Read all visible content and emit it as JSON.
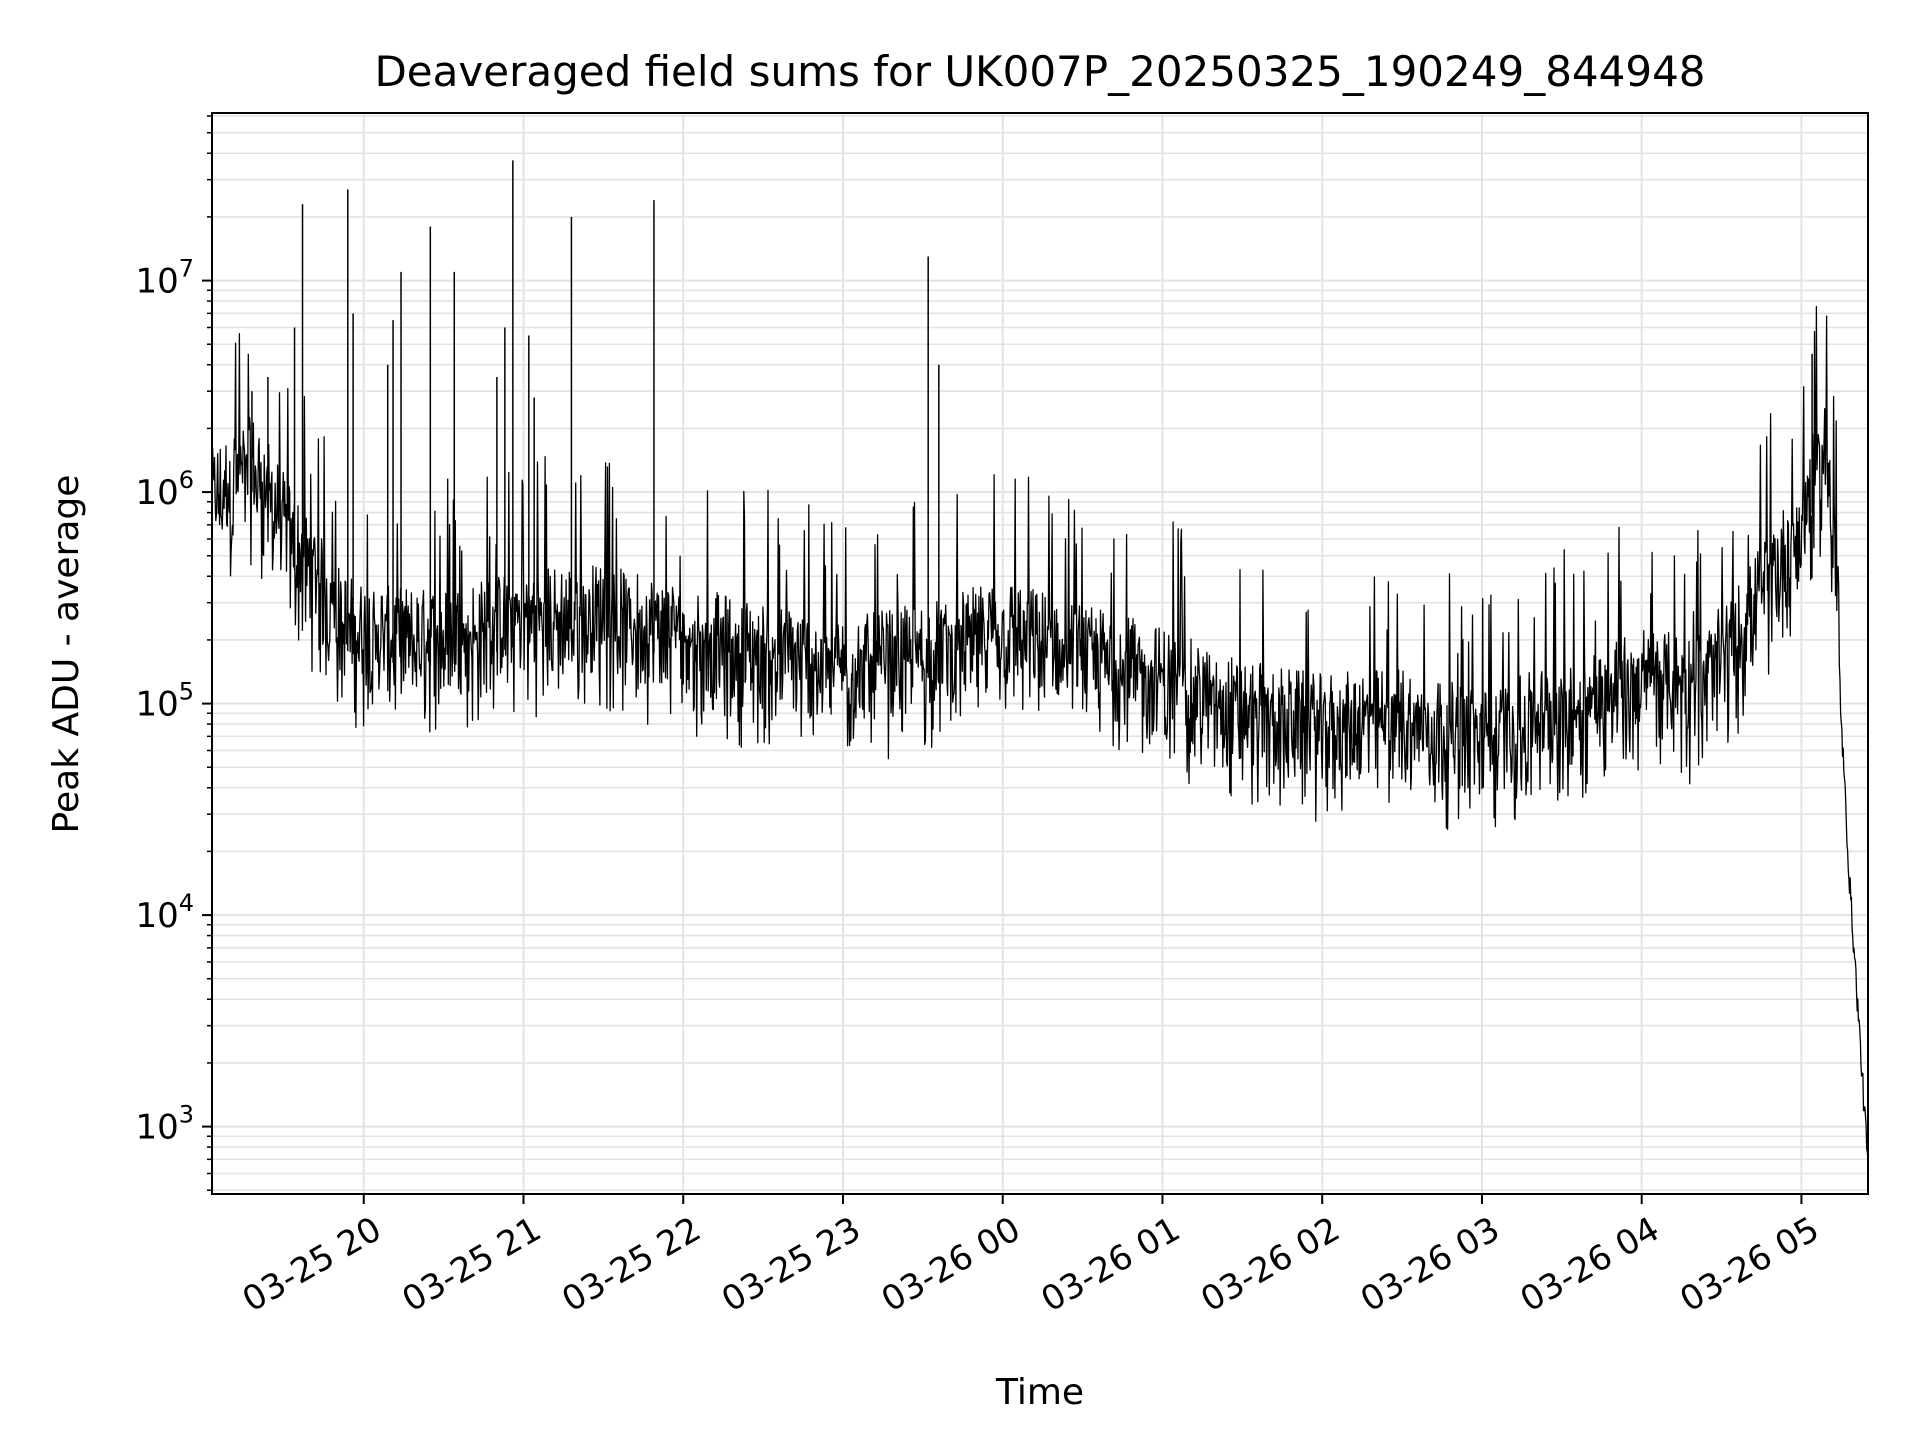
{
  "chart_data": {
    "type": "line",
    "title": "Deaveraged field sums for UK007P_20250325_190249_844948",
    "xlabel": "Time",
    "ylabel": "Peak ADU - average",
    "yscale": "log",
    "ylim": [
      480,
      62000000
    ],
    "xlim": [
      "2025-03-25 19:03",
      "2025-03-26 05:25"
    ],
    "x_ticks": [
      {
        "t": "2025-03-25 20:00",
        "label": "03-25 20"
      },
      {
        "t": "2025-03-25 21:00",
        "label": "03-25 21"
      },
      {
        "t": "2025-03-25 22:00",
        "label": "03-25 22"
      },
      {
        "t": "2025-03-25 23:00",
        "label": "03-25 23"
      },
      {
        "t": "2025-03-26 00:00",
        "label": "03-26 00"
      },
      {
        "t": "2025-03-26 01:00",
        "label": "03-26 01"
      },
      {
        "t": "2025-03-26 02:00",
        "label": "03-26 02"
      },
      {
        "t": "2025-03-26 03:00",
        "label": "03-26 03"
      },
      {
        "t": "2025-03-26 04:00",
        "label": "03-26 04"
      },
      {
        "t": "2025-03-26 05:00",
        "label": "03-26 05"
      }
    ],
    "y_ticks": [
      {
        "value": 1000,
        "base": "10",
        "exp": "3"
      },
      {
        "value": 10000,
        "base": "10",
        "exp": "4"
      },
      {
        "value": 100000,
        "base": "10",
        "exp": "5"
      },
      {
        "value": 1000000,
        "base": "10",
        "exp": "6"
      },
      {
        "value": 10000000,
        "base": "10",
        "exp": "7"
      }
    ],
    "grid": true,
    "line_color": "#000000",
    "grid_color": "#e3e3e3",
    "series": [
      {
        "points": [
          [
            "2025-03-25 19:03",
            700000
          ],
          [
            "2025-03-25 19:08",
            800000
          ],
          [
            "2025-03-25 19:13",
            900000
          ],
          [
            "2025-03-25 19:18",
            1000000
          ],
          [
            "2025-03-25 19:23",
            800000
          ],
          [
            "2025-03-25 19:28",
            600000
          ],
          [
            "2025-03-25 19:33",
            450000
          ],
          [
            "2025-03-25 19:38",
            350000
          ],
          [
            "2025-03-25 19:43",
            280000
          ],
          [
            "2025-03-25 19:48",
            220000
          ],
          [
            "2025-03-25 19:53",
            180000
          ],
          [
            "2025-03-25 20:00",
            160000
          ],
          [
            "2025-03-25 20:30",
            150000
          ],
          [
            "2025-03-25 21:00",
            190000
          ],
          [
            "2025-03-25 21:30",
            200000
          ],
          [
            "2025-03-25 22:00",
            160000
          ],
          [
            "2025-03-25 22:30",
            130000
          ],
          [
            "2025-03-25 23:00",
            110000
          ],
          [
            "2025-03-25 23:30",
            130000
          ],
          [
            "2025-03-26 00:00",
            170000
          ],
          [
            "2025-03-26 00:30",
            130000
          ],
          [
            "2025-03-26 01:00",
            100000
          ],
          [
            "2025-03-26 01:30",
            70000
          ],
          [
            "2025-03-26 02:00",
            60000
          ],
          [
            "2025-03-26 02:30",
            65000
          ],
          [
            "2025-03-26 03:00",
            50000
          ],
          [
            "2025-03-26 03:30",
            70000
          ],
          [
            "2025-03-26 04:00",
            100000
          ],
          [
            "2025-03-26 04:20",
            90000
          ],
          [
            "2025-03-26 04:35",
            150000
          ],
          [
            "2025-03-26 04:45",
            250000
          ],
          [
            "2025-03-26 04:55",
            400000
          ],
          [
            "2025-03-26 05:00",
            500000
          ],
          [
            "2025-03-26 05:05",
            900000
          ],
          [
            "2025-03-26 05:09",
            1300000
          ],
          [
            "2025-03-26 05:13",
            400000
          ],
          [
            "2025-03-26 05:15",
            80000
          ],
          [
            "2025-03-26 05:18",
            15000
          ],
          [
            "2025-03-26 05:21",
            4000
          ],
          [
            "2025-03-26 05:25",
            650
          ]
        ],
        "spikes": [
          [
            "2025-03-25 19:18",
            3000000
          ],
          [
            "2025-03-25 19:24",
            3500000
          ],
          [
            "2025-03-25 19:34",
            6000000
          ],
          [
            "2025-03-25 19:37",
            23000000
          ],
          [
            "2025-03-25 19:54",
            27000000
          ],
          [
            "2025-03-25 19:56",
            7000000
          ],
          [
            "2025-03-25 20:09",
            4000000
          ],
          [
            "2025-03-25 20:11",
            6500000
          ],
          [
            "2025-03-25 20:14",
            11000000
          ],
          [
            "2025-03-25 20:25",
            18000000
          ],
          [
            "2025-03-25 20:34",
            11000000
          ],
          [
            "2025-03-25 20:50",
            3500000
          ],
          [
            "2025-03-25 20:53",
            6000000
          ],
          [
            "2025-03-25 20:56",
            37000000
          ],
          [
            "2025-03-25 21:02",
            5500000
          ],
          [
            "2025-03-25 21:04",
            2800000
          ],
          [
            "2025-03-25 21:18",
            20000000
          ],
          [
            "2025-03-25 21:49",
            24000000
          ],
          [
            "2025-03-25 23:32",
            13000000
          ],
          [
            "2025-03-25 23:36",
            4000000
          ],
          [
            "2025-03-26 05:04",
            4500000
          ]
        ]
      }
    ]
  }
}
